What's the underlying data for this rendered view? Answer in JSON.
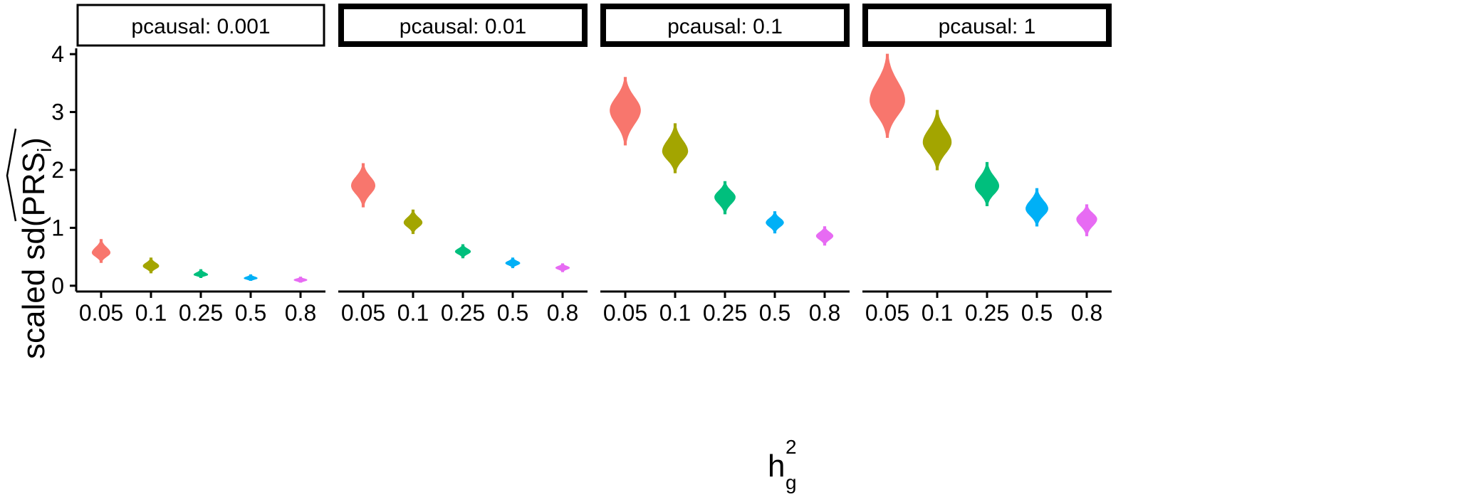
{
  "chart_data": {
    "type": "violin",
    "facet_variable": "pcausal",
    "panels": [
      {
        "label": "pcausal: 0.001",
        "medians": [
          0.57,
          0.34,
          0.19,
          0.13,
          0.1
        ],
        "ranges": [
          [
            0.4,
            0.8
          ],
          [
            0.22,
            0.48
          ],
          [
            0.14,
            0.28
          ],
          [
            0.09,
            0.19
          ],
          [
            0.06,
            0.15
          ]
        ]
      },
      {
        "label": "pcausal: 0.01",
        "medians": [
          1.73,
          1.09,
          0.59,
          0.39,
          0.31
        ],
        "ranges": [
          [
            1.36,
            2.11
          ],
          [
            0.9,
            1.31
          ],
          [
            0.48,
            0.71
          ],
          [
            0.31,
            0.48
          ],
          [
            0.24,
            0.38
          ]
        ]
      },
      {
        "label": "pcausal: 0.1",
        "medians": [
          3.03,
          2.32,
          1.53,
          1.09,
          0.86
        ],
        "ranges": [
          [
            2.43,
            3.6
          ],
          [
            1.95,
            2.8
          ],
          [
            1.24,
            1.8
          ],
          [
            0.91,
            1.28
          ],
          [
            0.7,
            1.02
          ]
        ]
      },
      {
        "label": "pcausal: 1",
        "medians": [
          3.2,
          2.48,
          1.72,
          1.33,
          1.15
        ],
        "ranges": [
          [
            2.56,
            4.0
          ],
          [
            2.0,
            3.03
          ],
          [
            1.38,
            2.13
          ],
          [
            1.03,
            1.68
          ],
          [
            0.86,
            1.4
          ]
        ]
      }
    ],
    "categories": [
      "0.05",
      "0.1",
      "0.25",
      "0.5",
      "0.8"
    ],
    "category_colors": [
      "#F8766D",
      "#A3A500",
      "#00BF7D",
      "#00B0F6",
      "#E76BF3"
    ],
    "yticks": [
      "0",
      "1",
      "2",
      "3",
      "4"
    ],
    "ylim": [
      -0.1,
      4.1
    ],
    "xlabel": {
      "main": "h",
      "sup": "2",
      "sub": "g"
    },
    "ylabel": {
      "prefix": "scaled sd(",
      "hat": "PRS",
      "sub": "i",
      "suffix": ")"
    }
  }
}
